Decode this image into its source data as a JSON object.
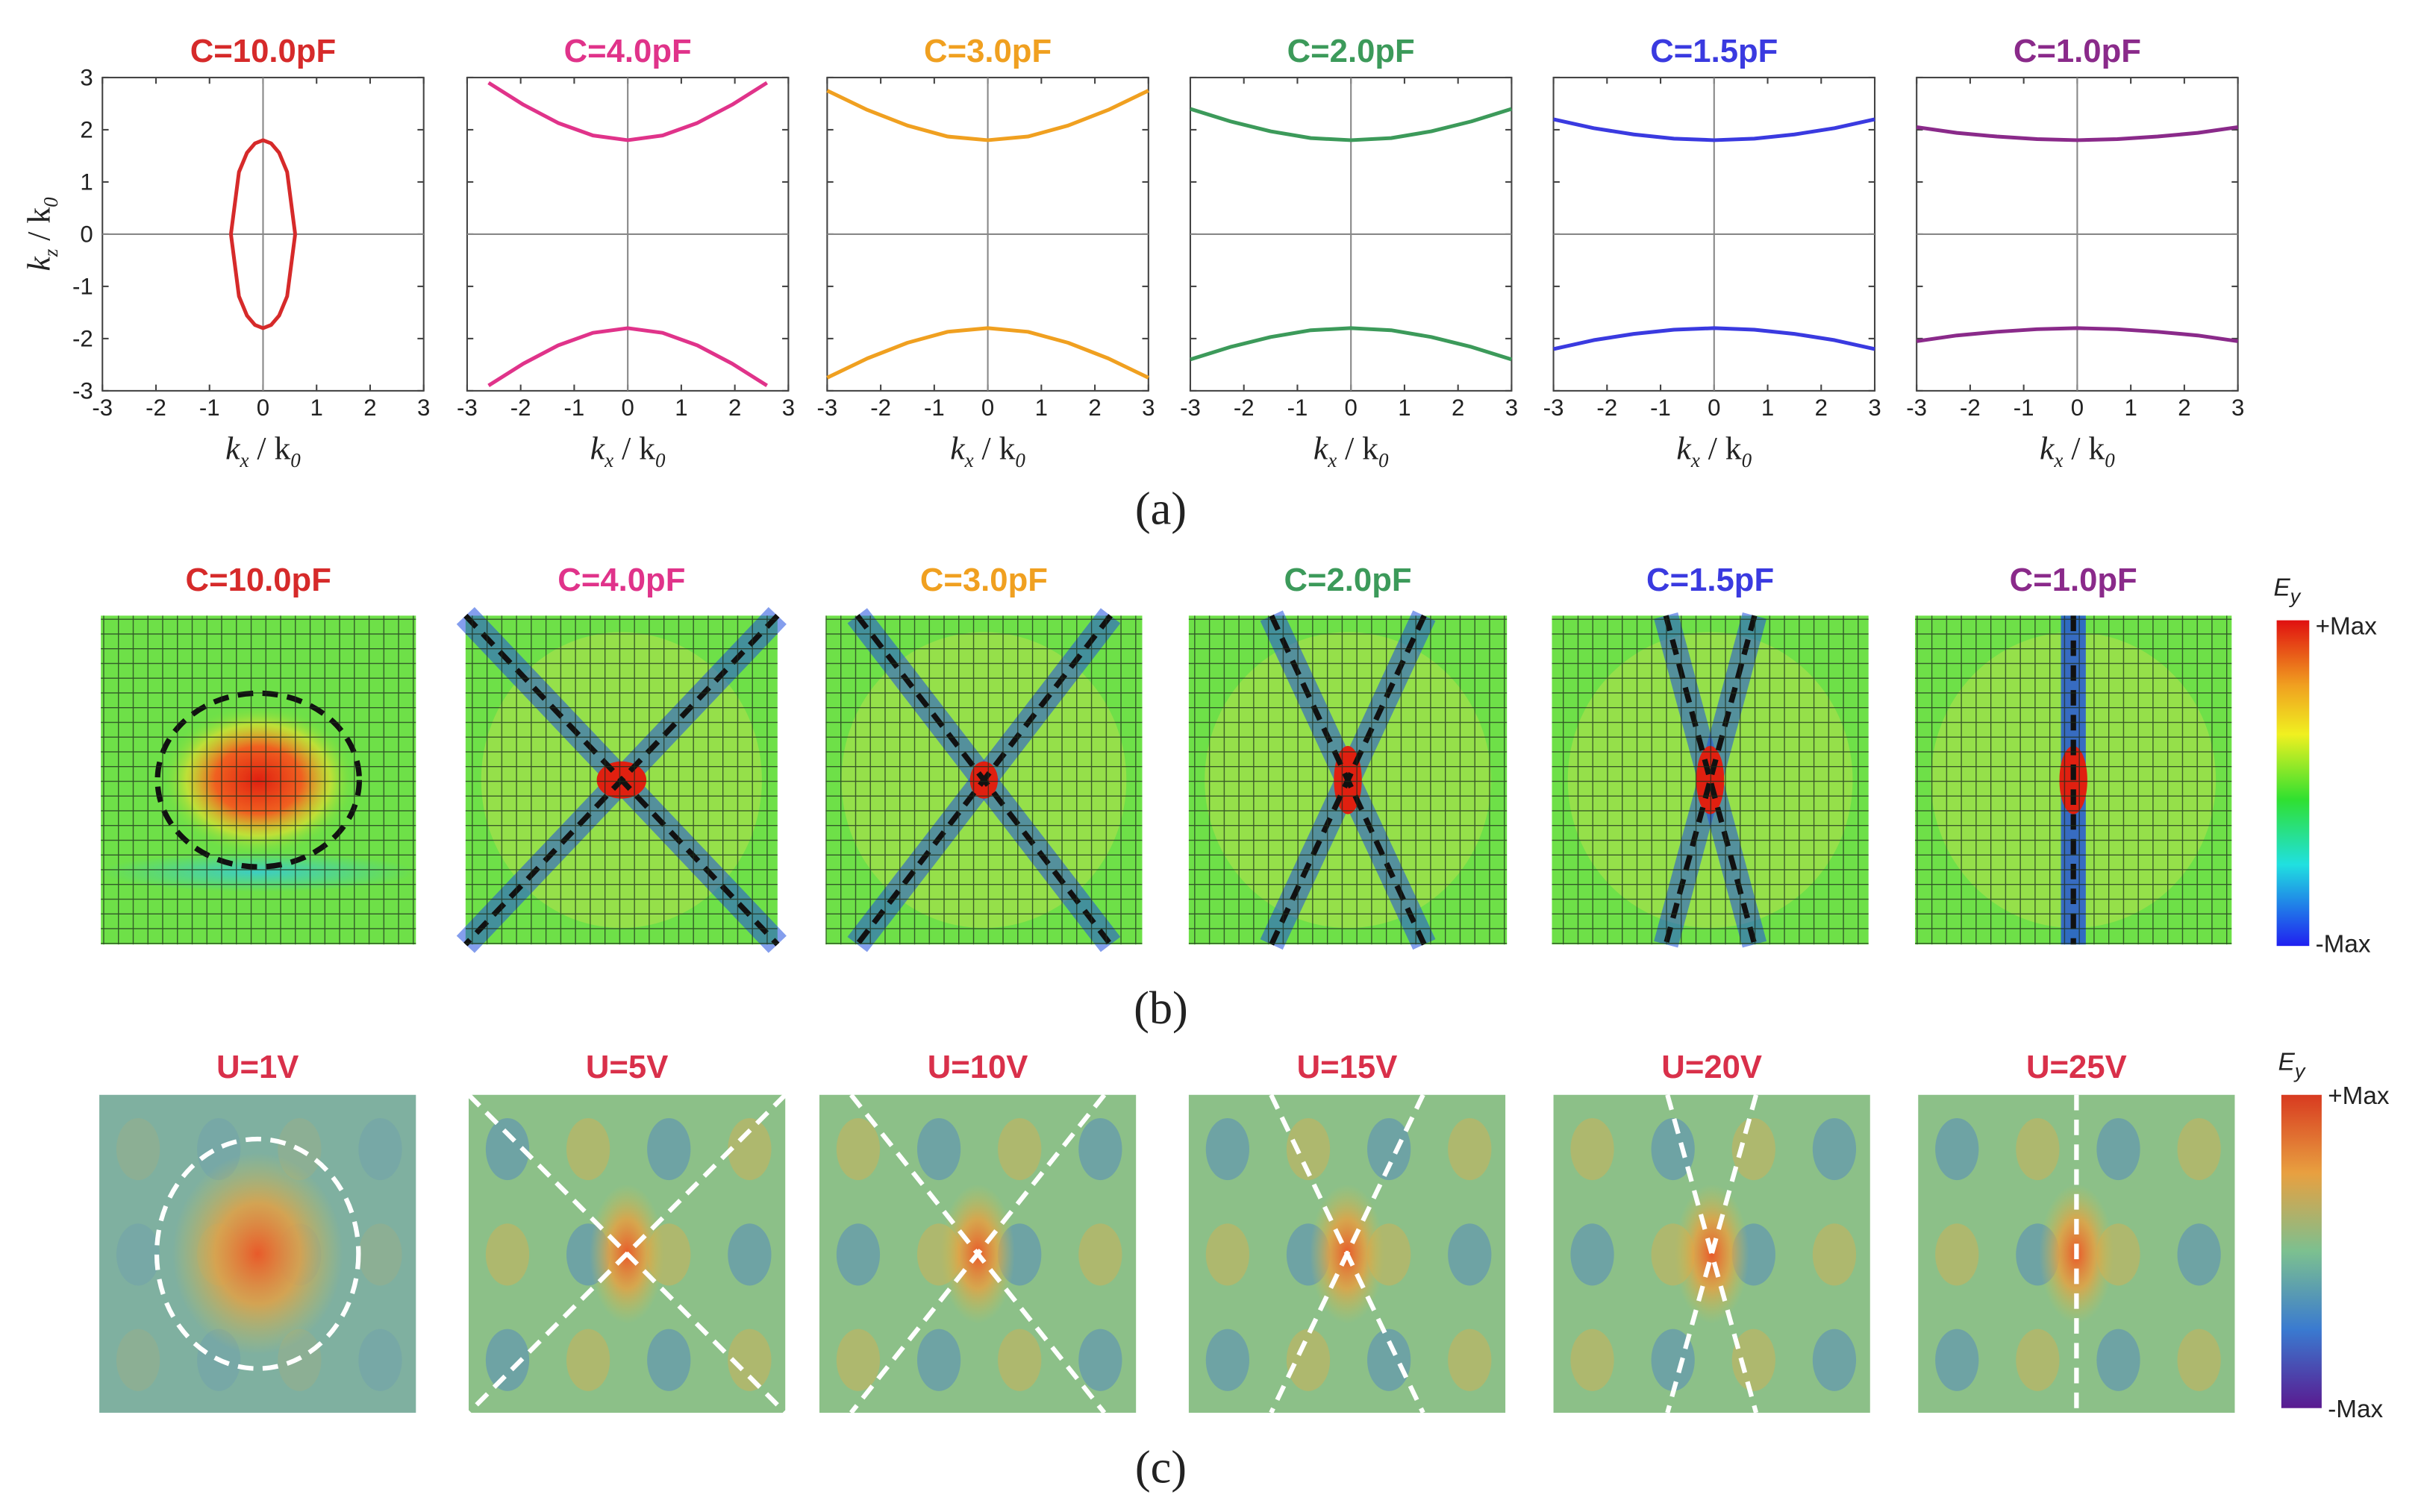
{
  "chart_data": [
    {
      "type": "line",
      "title": "C=10.0pF",
      "xlabel": [
        "k",
        "x",
        " / k",
        "0"
      ],
      "ylabel": [
        "k",
        "z",
        " / k",
        "0"
      ],
      "x": [
        -0.6,
        -0.45,
        -0.3,
        -0.15,
        0,
        0.15,
        0.3,
        0.45,
        0.6
      ],
      "series": [
        {
          "color": "#d62a2a",
          "values": [
            0,
            1.19,
            1.56,
            1.74,
            1.8,
            1.74,
            1.56,
            1.19,
            0
          ]
        },
        {
          "color": "#d62a2a",
          "values": [
            0,
            -1.19,
            -1.56,
            -1.74,
            -1.8,
            -1.74,
            -1.56,
            -1.19,
            0
          ]
        }
      ],
      "xlim": [
        -3,
        3
      ],
      "ylim": [
        -3,
        3
      ],
      "xticks": [
        -3,
        -2,
        -1,
        0,
        1,
        2,
        3
      ],
      "yticks": [
        -3,
        -2,
        -1,
        0,
        1,
        2,
        3
      ]
    },
    {
      "type": "line",
      "title": "C=4.0pF",
      "xlabel": [
        "k",
        "x",
        " / k",
        "0"
      ],
      "x": [
        -2.6,
        -1.95,
        -1.3,
        -0.65,
        0,
        0.65,
        1.3,
        1.95,
        2.6
      ],
      "series": [
        {
          "color": "#e0338a",
          "values": [
            2.9,
            2.48,
            2.13,
            1.89,
            1.8,
            1.89,
            2.13,
            2.48,
            2.9
          ]
        },
        {
          "color": "#e0338a",
          "values": [
            -2.9,
            -2.48,
            -2.13,
            -1.89,
            -1.8,
            -1.89,
            -2.13,
            -2.48,
            -2.9
          ]
        }
      ],
      "xlim": [
        -3,
        3
      ],
      "ylim": [
        -3,
        3
      ],
      "xticks": [
        -3,
        -2,
        -1,
        0,
        1,
        2,
        3
      ],
      "yticks": [
        -3,
        -2,
        -1,
        0,
        1,
        2,
        3
      ]
    },
    {
      "type": "line",
      "title": "C=3.0pF",
      "xlabel": [
        "k",
        "x",
        " / k",
        "0"
      ],
      "x": [
        -3,
        -2.25,
        -1.5,
        -0.75,
        0,
        0.75,
        1.5,
        2.25,
        3
      ],
      "series": [
        {
          "color": "#f0a020",
          "values": [
            2.75,
            2.38,
            2.08,
            1.87,
            1.8,
            1.87,
            2.08,
            2.38,
            2.75
          ]
        },
        {
          "color": "#f0a020",
          "values": [
            -2.75,
            -2.38,
            -2.08,
            -1.87,
            -1.8,
            -1.87,
            -2.08,
            -2.38,
            -2.75
          ]
        }
      ],
      "xlim": [
        -3,
        3
      ],
      "ylim": [
        -3,
        3
      ],
      "xticks": [
        -3,
        -2,
        -1,
        0,
        1,
        2,
        3
      ],
      "yticks": [
        -3,
        -2,
        -1,
        0,
        1,
        2,
        3
      ]
    },
    {
      "type": "line",
      "title": "C=2.0pF",
      "xlabel": [
        "k",
        "x",
        " / k",
        "0"
      ],
      "x": [
        -3,
        -2.25,
        -1.5,
        -0.75,
        0,
        0.75,
        1.5,
        2.25,
        3
      ],
      "series": [
        {
          "color": "#3c9a5a",
          "values": [
            2.4,
            2.16,
            1.97,
            1.84,
            1.8,
            1.84,
            1.97,
            2.16,
            2.4
          ]
        },
        {
          "color": "#3c9a5a",
          "values": [
            -2.4,
            -2.16,
            -1.97,
            -1.84,
            -1.8,
            -1.84,
            -1.97,
            -2.16,
            -2.4
          ]
        }
      ],
      "xlim": [
        -3,
        3
      ],
      "ylim": [
        -3,
        3
      ],
      "xticks": [
        -3,
        -2,
        -1,
        0,
        1,
        2,
        3
      ],
      "yticks": [
        -3,
        -2,
        -1,
        0,
        1,
        2,
        3
      ]
    },
    {
      "type": "line",
      "title": "C=1.5pF",
      "xlabel": [
        "k",
        "x",
        " / k",
        "0"
      ],
      "x": [
        -3,
        -2.25,
        -1.5,
        -0.75,
        0,
        0.75,
        1.5,
        2.25,
        3
      ],
      "series": [
        {
          "color": "#3a3ae0",
          "values": [
            2.2,
            2.03,
            1.91,
            1.83,
            1.8,
            1.83,
            1.91,
            2.03,
            2.2
          ]
        },
        {
          "color": "#3a3ae0",
          "values": [
            -2.2,
            -2.03,
            -1.91,
            -1.83,
            -1.8,
            -1.83,
            -1.91,
            -2.03,
            -2.2
          ]
        }
      ],
      "xlim": [
        -3,
        3
      ],
      "ylim": [
        -3,
        3
      ],
      "xticks": [
        -3,
        -2,
        -1,
        0,
        1,
        2,
        3
      ],
      "yticks": [
        -3,
        -2,
        -1,
        0,
        1,
        2,
        3
      ]
    },
    {
      "type": "line",
      "title": "C=1.0pF",
      "xlabel": [
        "k",
        "x",
        " / k",
        "0"
      ],
      "x": [
        -3,
        -2.25,
        -1.5,
        -0.75,
        0,
        0.75,
        1.5,
        2.25,
        3
      ],
      "series": [
        {
          "color": "#8a2a8a",
          "values": [
            2.05,
            1.94,
            1.87,
            1.82,
            1.8,
            1.82,
            1.87,
            1.94,
            2.05
          ]
        },
        {
          "color": "#8a2a8a",
          "values": [
            -2.05,
            -1.94,
            -1.87,
            -1.82,
            -1.8,
            -1.82,
            -1.87,
            -1.94,
            -2.05
          ]
        }
      ],
      "xlim": [
        -3,
        3
      ],
      "ylim": [
        -3,
        3
      ],
      "xticks": [
        -3,
        -2,
        -1,
        0,
        1,
        2,
        3
      ],
      "yticks": [
        -3,
        -2,
        -1,
        0,
        1,
        2,
        3
      ]
    }
  ],
  "panel_labels": [
    "(a)",
    "(b)",
    "(c)"
  ],
  "row_b": {
    "titles": [
      "C=10.0pF",
      "C=4.0pF",
      "C=3.0pF",
      "C=2.0pF",
      "C=1.5pF",
      "C=1.0pF"
    ],
    "colors": [
      "#d62a2a",
      "#e0338a",
      "#f0a020",
      "#3c9a5a",
      "#3a3ae0",
      "#8a2a8a"
    ],
    "colorbar": {
      "label": [
        "E",
        "y"
      ],
      "max": "+Max",
      "min": "-Max"
    }
  },
  "row_c": {
    "titles": [
      "U=1V",
      "U=5V",
      "U=10V",
      "U=15V",
      "U=20V",
      "U=25V"
    ],
    "color": "#d9304a",
    "colorbar": {
      "label": [
        "E",
        "y"
      ],
      "max": "+Max",
      "min": "-Max"
    }
  }
}
